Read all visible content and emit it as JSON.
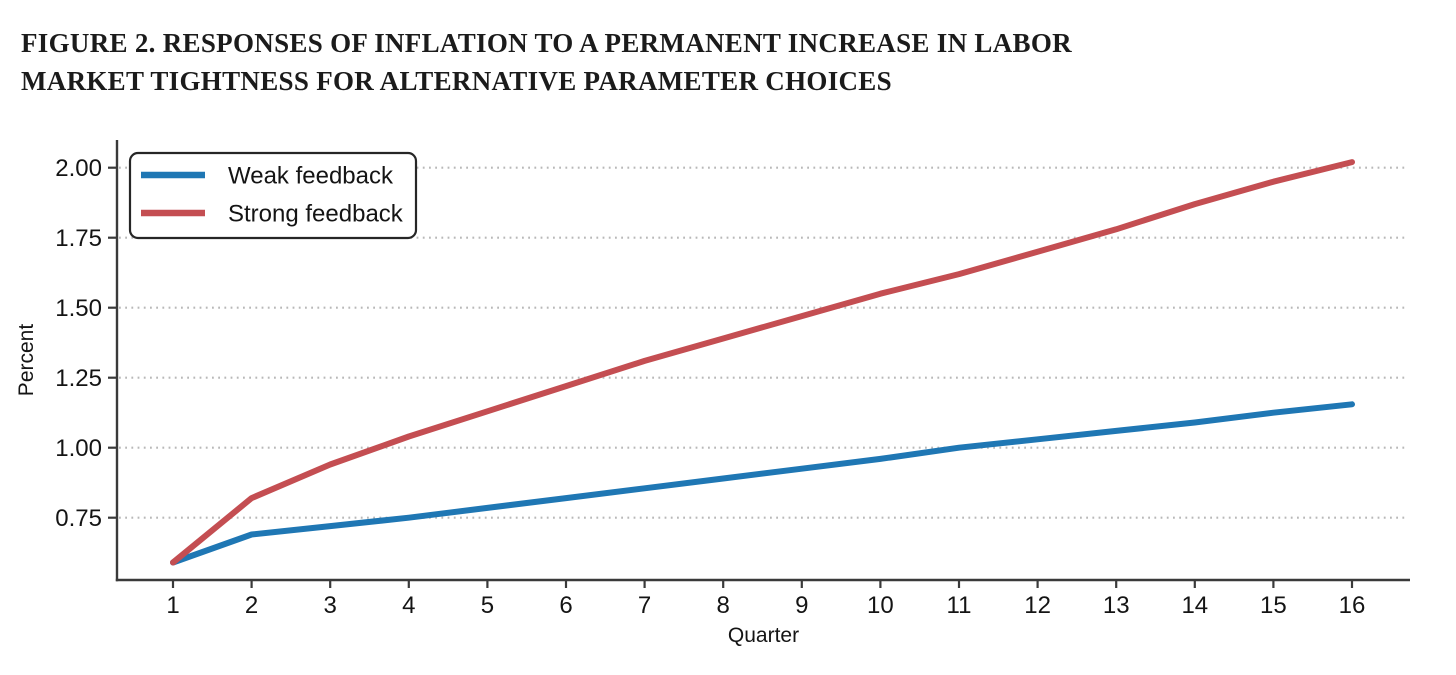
{
  "figure": {
    "title_line1": "FIGURE 2.  RESPONSES OF INFLATION TO A PERMANENT INCREASE IN LABOR",
    "title_line2": "MARKET TIGHTNESS FOR ALTERNATIVE PARAMETER CHOICES"
  },
  "chart_data": {
    "type": "line",
    "title": "Responses of inflation to a permanent increase in labor market tightness for alternative parameter choices",
    "xlabel": "Quarter",
    "ylabel": "Percent",
    "x": [
      1,
      2,
      3,
      4,
      5,
      6,
      7,
      8,
      9,
      10,
      11,
      12,
      13,
      14,
      15,
      16
    ],
    "series": [
      {
        "name": "Weak feedback",
        "color": "#1f77b4",
        "values": [
          0.59,
          0.69,
          0.72,
          0.75,
          0.785,
          0.82,
          0.855,
          0.89,
          0.925,
          0.96,
          1.0,
          1.03,
          1.06,
          1.09,
          1.125,
          1.155
        ]
      },
      {
        "name": "Strong feedback",
        "color": "#c44e52",
        "values": [
          0.59,
          0.82,
          0.94,
          1.04,
          1.13,
          1.22,
          1.31,
          1.39,
          1.47,
          1.55,
          1.62,
          1.7,
          1.78,
          1.87,
          1.95,
          2.02
        ]
      }
    ],
    "yticks": [
      0.75,
      1.0,
      1.25,
      1.5,
      1.75,
      2.0
    ],
    "xticks": [
      1,
      2,
      3,
      4,
      5,
      6,
      7,
      8,
      9,
      10,
      11,
      12,
      13,
      14,
      15,
      16
    ],
    "ylim": [
      0.53,
      2.1
    ],
    "xlim": [
      0.3,
      16.75
    ],
    "grid": "horizontal-dotted",
    "legend_position": "upper-left",
    "colors": {
      "grid": "#b8b8b8",
      "axis": "#3a3a3a",
      "text": "#141414",
      "legend_border": "#262626",
      "background": "#ffffff"
    }
  }
}
